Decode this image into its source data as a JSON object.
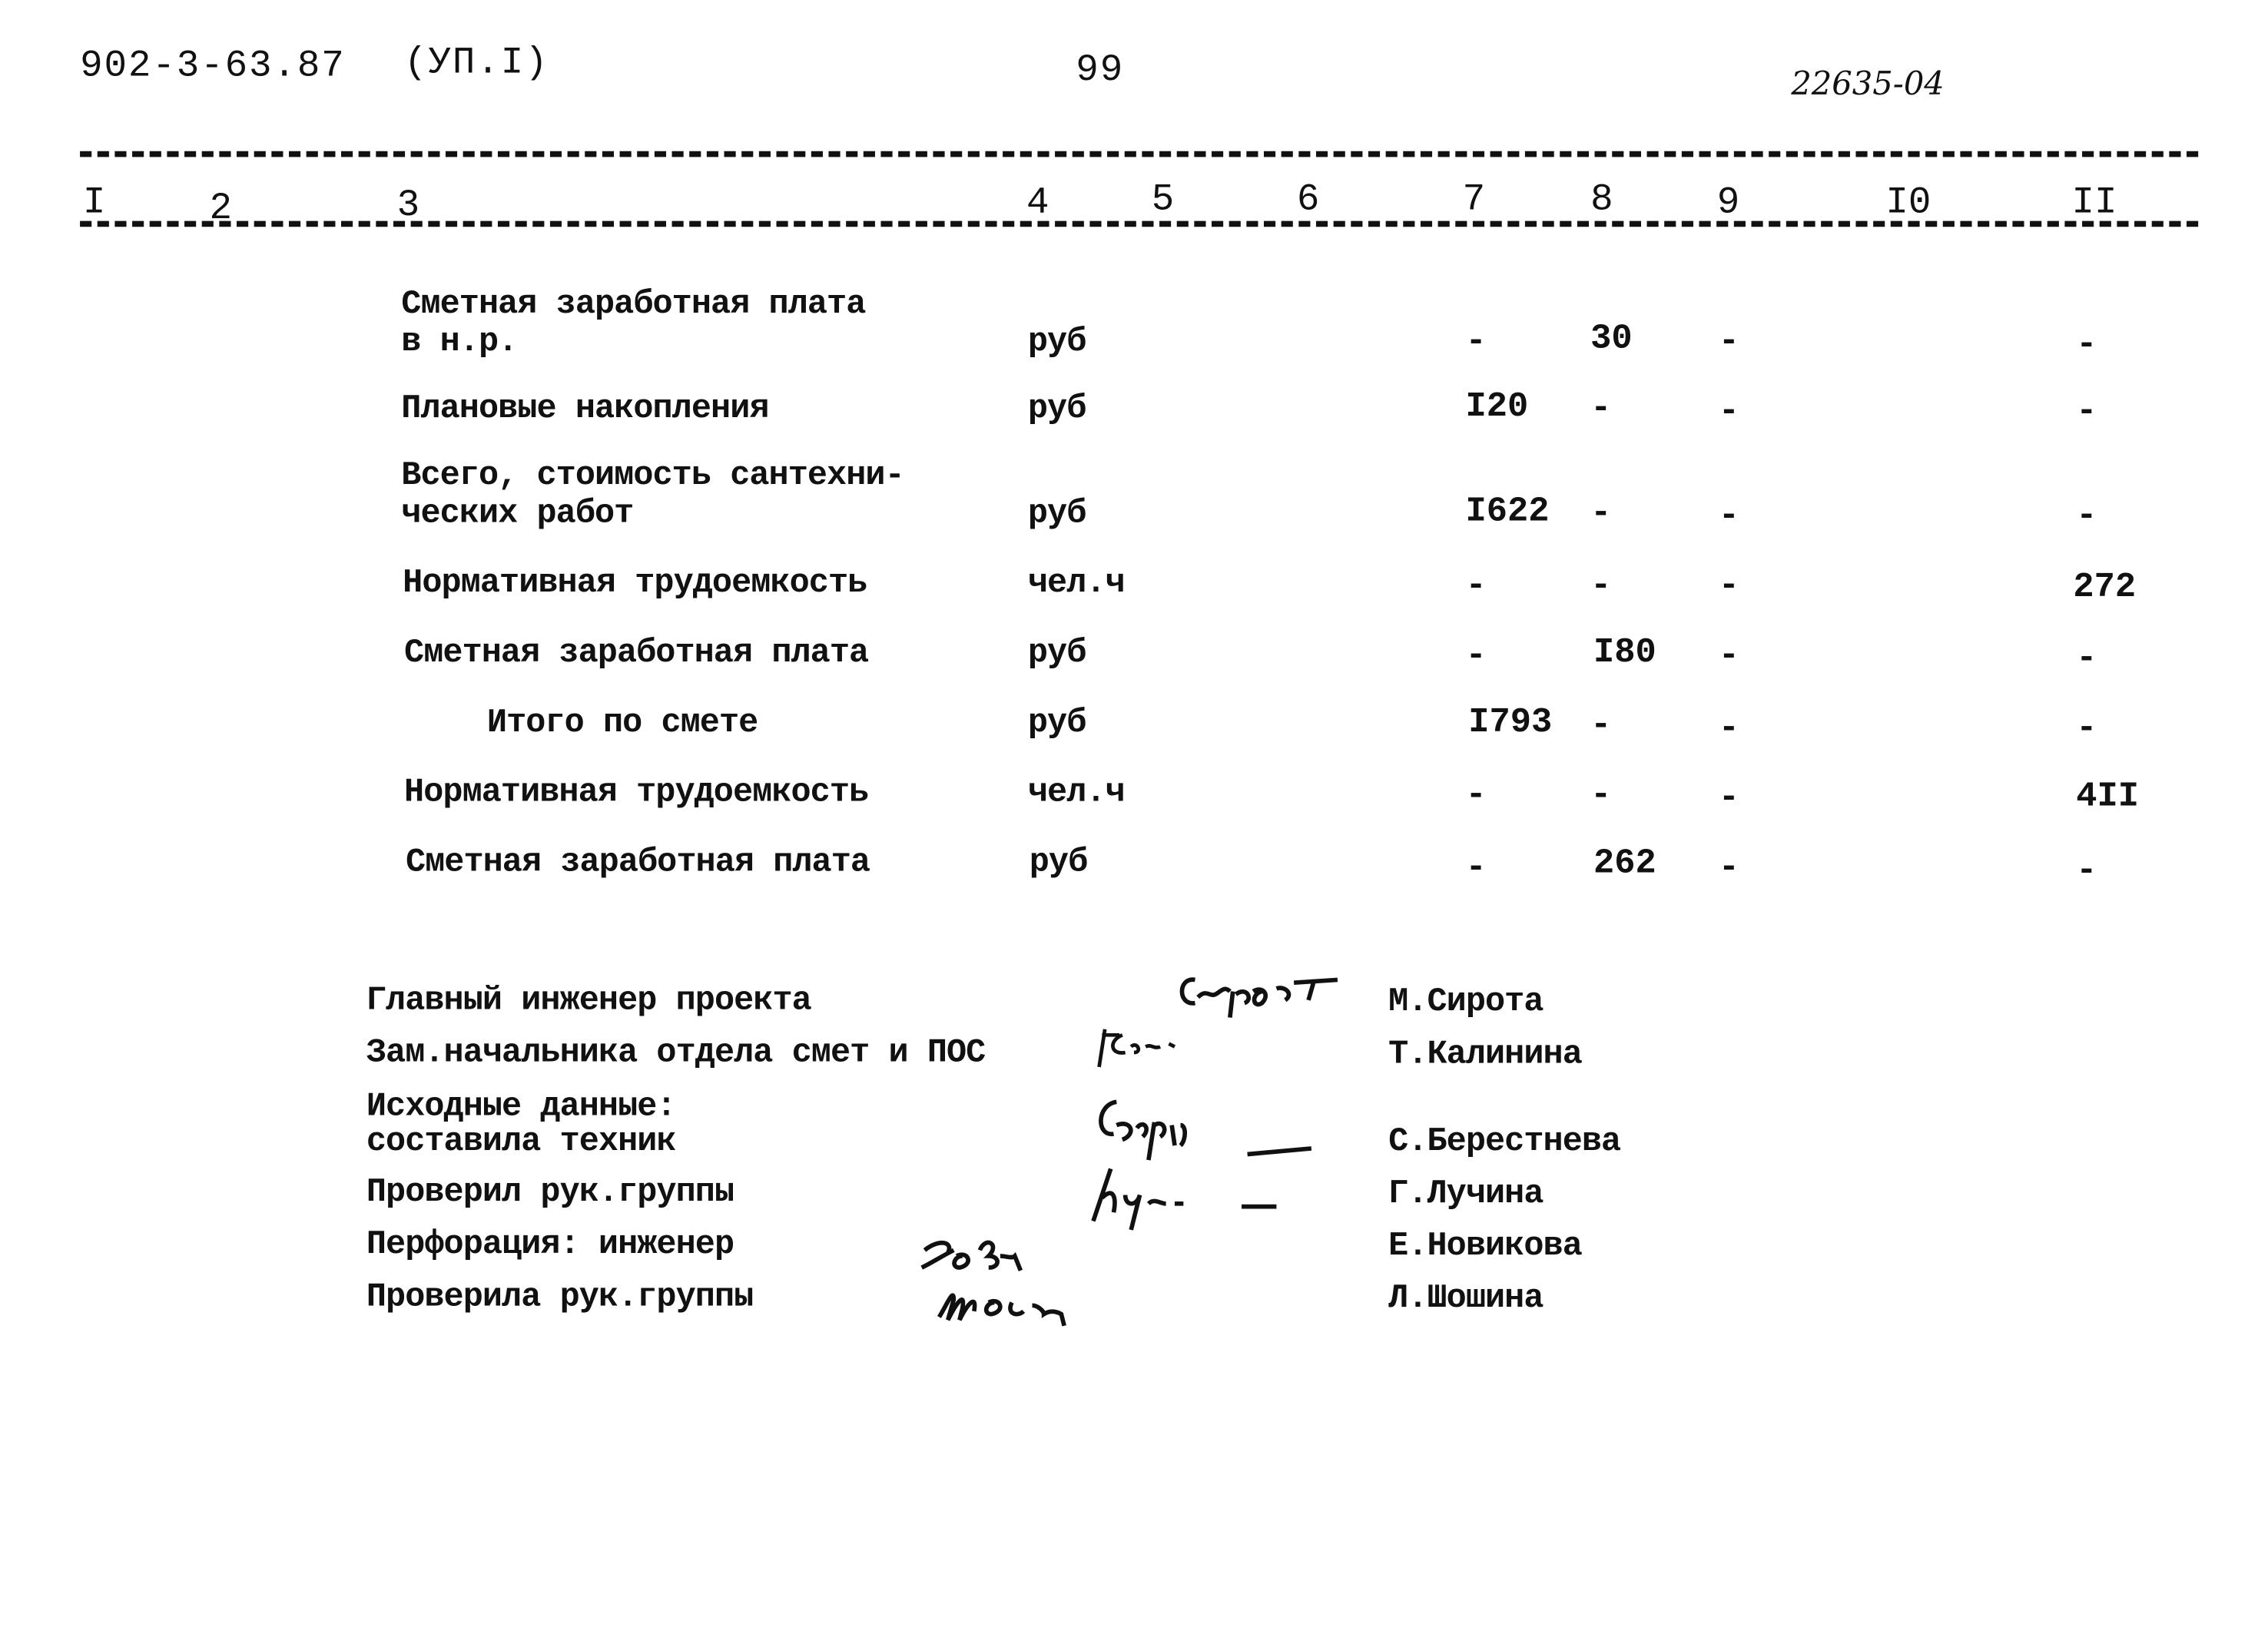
{
  "header": {
    "doc_code": "902-3-63.87",
    "volume": "(УП.I)",
    "page_number": "99",
    "inventory_number": "22635-04"
  },
  "column_numbers": [
    "I",
    "2",
    "3",
    "4",
    "5",
    "6",
    "7",
    "8",
    "9",
    "I0",
    "II"
  ],
  "rows": [
    {
      "label": [
        "Сметная заработная плата",
        "в н.р."
      ],
      "unit": "руб",
      "c7": "-",
      "c8": "30",
      "c9": "-",
      "c11": "-"
    },
    {
      "label": [
        "Плановые накопления"
      ],
      "unit": "руб",
      "c7": "I20",
      "c8": "-",
      "c9": "-",
      "c11": "-"
    },
    {
      "label": [
        "Всего, стоимость сантехни-",
        "ческих работ"
      ],
      "unit": "руб",
      "c7": "I622",
      "c8": "-",
      "c9": "-",
      "c11": "-"
    },
    {
      "label": [
        "Нормативная трудоемкость"
      ],
      "unit": "чел.ч",
      "c7": "-",
      "c8": "-",
      "c9": "-",
      "c11": "272"
    },
    {
      "label": [
        "Сметная заработная плата"
      ],
      "unit": "руб",
      "c7": "-",
      "c8": "I80",
      "c9": "-",
      "c11": "-"
    },
    {
      "label": [
        "Итого по смете"
      ],
      "unit": "руб",
      "c7": "I793",
      "c8": "-",
      "c9": "-",
      "c11": "-"
    },
    {
      "label": [
        "Нормативная трудоемкость"
      ],
      "unit": "чел.ч",
      "c7": "-",
      "c8": "-",
      "c9": "-",
      "c11": "4II"
    },
    {
      "label": [
        "Сметная заработная плата"
      ],
      "unit": "руб",
      "c7": "-",
      "c8": "262",
      "c9": "-",
      "c11": "-"
    }
  ],
  "signatures": [
    {
      "role": [
        "Главный инженер проекта"
      ],
      "name": "М.Сирота",
      "signature": "Сирот"
    },
    {
      "role": [
        "Зам.начальника отдела смет и ПОС"
      ],
      "name": "Т.Калинина",
      "signature": "ГКал"
    },
    {
      "role": [
        "Исходные данные:",
        "составила техник"
      ],
      "name": "С.Берестнева",
      "signature": "Берг"
    },
    {
      "role": [
        "Проверил рук.группы"
      ],
      "name": "Г.Лучина",
      "signature": "Луч"
    },
    {
      "role": [
        "Перфорация: инженер"
      ],
      "name": "Е.Новикова",
      "signature": "Нов"
    },
    {
      "role": [
        "Проверила рук.группы"
      ],
      "name": "Л.Шошина",
      "signature": "Шош"
    }
  ]
}
